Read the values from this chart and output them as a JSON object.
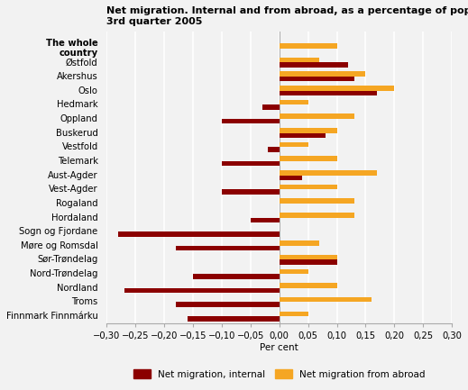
{
  "title_line1": "Net migration. Internal and from abroad, as a percentage of population",
  "title_line2": "3rd quarter 2005",
  "categories": [
    "The whole\ncountry",
    "Østfold",
    "Akershus",
    "Oslo",
    "Hedmark",
    "Oppland",
    "Buskerud",
    "Vestfold",
    "Telemark",
    "Aust-Agder",
    "Vest-Agder",
    "Rogaland",
    "Hordaland",
    "Sogn og Fjordane",
    "Møre og Romsdal",
    "Sør-Trøndelag",
    "Nord-Trøndelag",
    "Nordland",
    "Troms",
    "Finnmark Finnmárku"
  ],
  "internal": [
    0.0,
    0.12,
    0.13,
    0.17,
    -0.03,
    -0.1,
    0.08,
    -0.02,
    -0.1,
    0.04,
    -0.1,
    0.0,
    -0.05,
    -0.28,
    -0.18,
    0.1,
    -0.15,
    -0.27,
    -0.18,
    -0.16
  ],
  "abroad": [
    0.1,
    0.07,
    0.15,
    0.2,
    0.05,
    0.13,
    0.1,
    0.05,
    0.1,
    0.17,
    0.1,
    0.13,
    0.13,
    0.0,
    0.07,
    0.1,
    0.05,
    0.1,
    0.16,
    0.05
  ],
  "internal_color": "#8B0000",
  "abroad_color": "#F5A623",
  "xlim": [
    -0.3,
    0.3
  ],
  "xticks": [
    -0.3,
    -0.25,
    -0.2,
    -0.15,
    -0.1,
    -0.05,
    0.0,
    0.05,
    0.1,
    0.15,
    0.2,
    0.25,
    0.3
  ],
  "xlabel": "Per cent",
  "legend_internal": "Net migration, internal",
  "legend_abroad": "Net migration from abroad",
  "background_color": "#f2f2f2",
  "grid_color": "#ffffff",
  "bar_height": 0.35
}
